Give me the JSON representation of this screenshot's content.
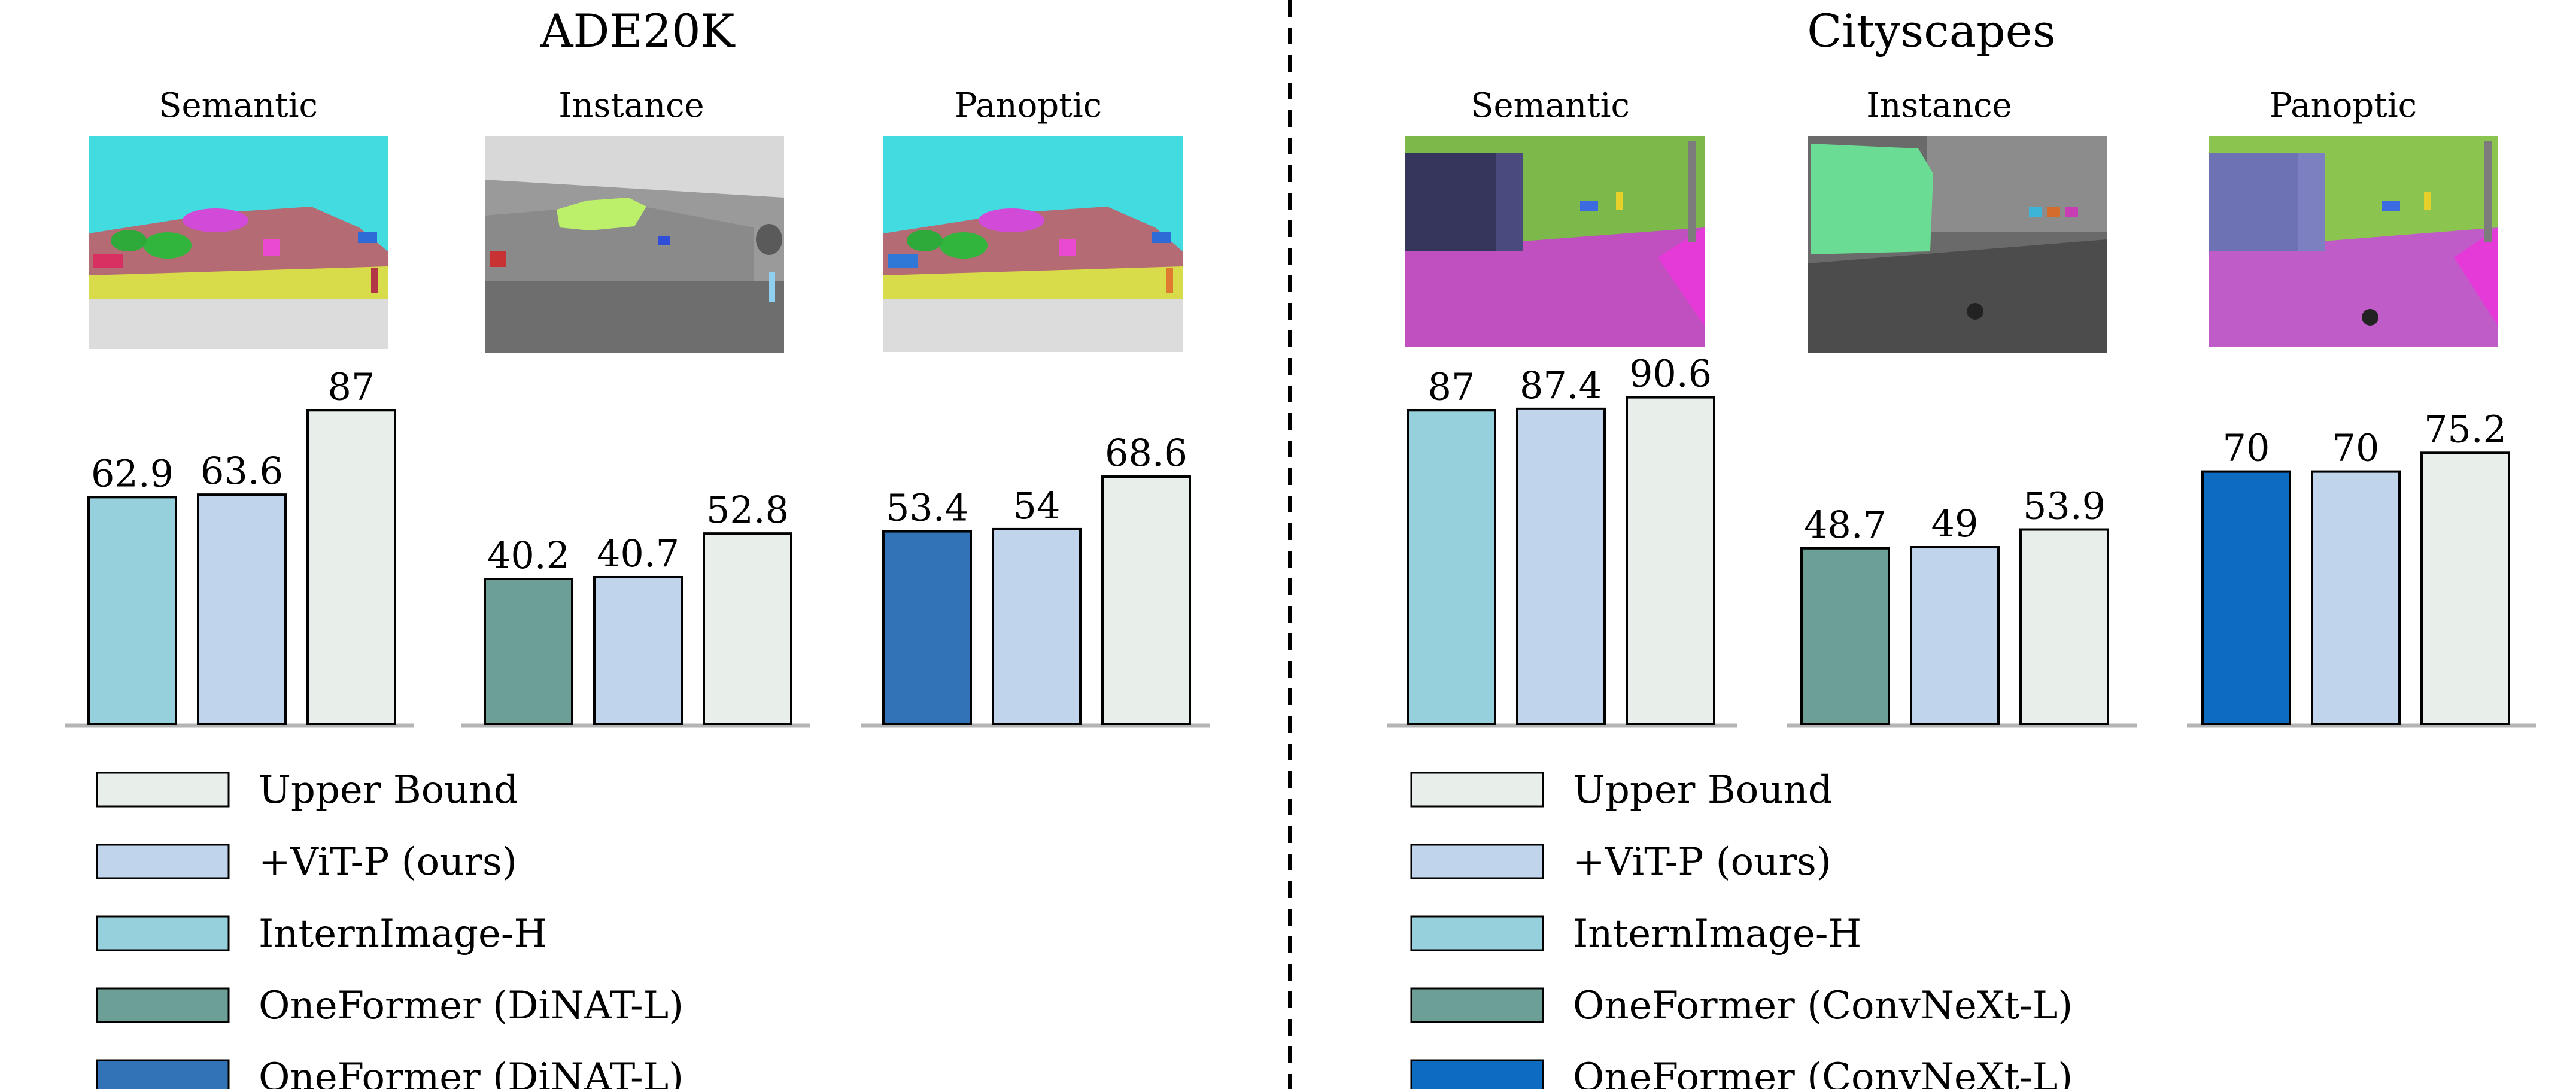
{
  "colors": {
    "upper_bound": "#e8eee9",
    "vitp": "#c0d5eb",
    "internimage": "#96d0dc",
    "oneformer_teal": "#6c9f96",
    "oneformer_blue_ade": "#3173b6",
    "oneformer_blue_city": "#0e6cc0",
    "axis": "#b4b4b4"
  },
  "chart_data": [
    {
      "type": "bar",
      "title": "ADE20K",
      "groups": [
        {
          "name": "Semantic",
          "categories": [
            "InternImage-H",
            "+ViT-P (ours)",
            "Upper Bound"
          ],
          "values": [
            62.9,
            63.6,
            87
          ]
        },
        {
          "name": "Instance",
          "categories": [
            "OneFormer (DiNAT-L)",
            "+ViT-P (ours)",
            "Upper Bound"
          ],
          "values": [
            40.2,
            40.7,
            52.8
          ]
        },
        {
          "name": "Panoptic",
          "categories": [
            "OneFormer (DiNAT-L)",
            "+ViT-P (ours)",
            "Upper Bound"
          ],
          "values": [
            53.4,
            54,
            68.6
          ]
        }
      ],
      "legend": [
        {
          "label": "Upper Bound",
          "color_key": "upper_bound"
        },
        {
          "label": "+ViT-P (ours)",
          "color_key": "vitp"
        },
        {
          "label": "InternImage-H",
          "color_key": "internimage"
        },
        {
          "label": "OneFormer (DiNAT-L)",
          "color_key": "oneformer_teal"
        },
        {
          "label": "OneFormer (DiNAT-L)",
          "color_key": "oneformer_blue_ade"
        }
      ]
    },
    {
      "type": "bar",
      "title": "Cityscapes",
      "groups": [
        {
          "name": "Semantic",
          "categories": [
            "InternImage-H",
            "+ViT-P (ours)",
            "Upper Bound"
          ],
          "values": [
            87,
            87.4,
            90.6
          ]
        },
        {
          "name": "Instance",
          "categories": [
            "OneFormer (ConvNeXt-L)",
            "+ViT-P (ours)",
            "Upper Bound"
          ],
          "values": [
            48.7,
            49,
            53.9
          ]
        },
        {
          "name": "Panoptic",
          "categories": [
            "OneFormer (ConvNeXt-L)",
            "+ViT-P (ours)",
            "Upper Bound"
          ],
          "values": [
            70,
            70,
            75.2
          ]
        }
      ],
      "legend": [
        {
          "label": "Upper Bound",
          "color_key": "upper_bound"
        },
        {
          "label": "+ViT-P (ours)",
          "color_key": "vitp"
        },
        {
          "label": "InternImage-H",
          "color_key": "internimage"
        },
        {
          "label": "OneFormer (ConvNeXt-L)",
          "color_key": "oneformer_teal"
        },
        {
          "label": "OneFormer (ConvNeXt-L)",
          "color_key": "oneformer_blue_city"
        }
      ]
    }
  ]
}
